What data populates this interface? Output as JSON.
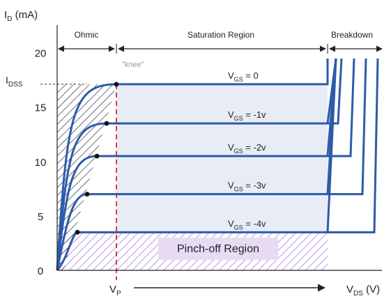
{
  "chart_data": {
    "type": "line",
    "title": "",
    "ylabel": {
      "main": "I",
      "sub": "D",
      "tail": " (mA)"
    },
    "xlabel": {
      "main": "V",
      "sub": "DS",
      "tail": " (V)"
    },
    "yticks": [
      "0",
      "5",
      "10",
      "15",
      "20"
    ],
    "ylim": [
      0,
      21
    ],
    "idss_label": {
      "main": "I",
      "sub": "DSS"
    },
    "vp_label": {
      "main": "V",
      "sub": "P"
    },
    "regions": {
      "ohmic": "Ohmic",
      "saturation": "Saturation Region",
      "breakdown": "Breakdown",
      "pinch_off": "Pinch-off Region",
      "knee": "\"knee\""
    },
    "series": [
      {
        "label_main": "V",
        "label_sub": "GS",
        "label_tail": " = 0",
        "current_ma": 17.1
      },
      {
        "label_main": "V",
        "label_sub": "GS",
        "label_tail": " = -1v",
        "current_ma": 13.5
      },
      {
        "label_main": "V",
        "label_sub": "GS",
        "label_tail": " = -2v",
        "current_ma": 10.5
      },
      {
        "label_main": "V",
        "label_sub": "GS",
        "label_tail": " = -3v",
        "current_ma": 7.0
      },
      {
        "label_main": "V",
        "label_sub": "GS",
        "label_tail": " = -4v",
        "current_ma": 3.5
      }
    ],
    "colors": {
      "curve": "#2e5aa8",
      "saturation_fill": "#e7ecf6",
      "pinchoff_hatch": "#9b6fd6",
      "pinchoff_box": "#e8dcf5",
      "ohmic_hatch": "#2a3346",
      "vp_line": "#d42a2a",
      "knee_dot": "#111111"
    }
  }
}
